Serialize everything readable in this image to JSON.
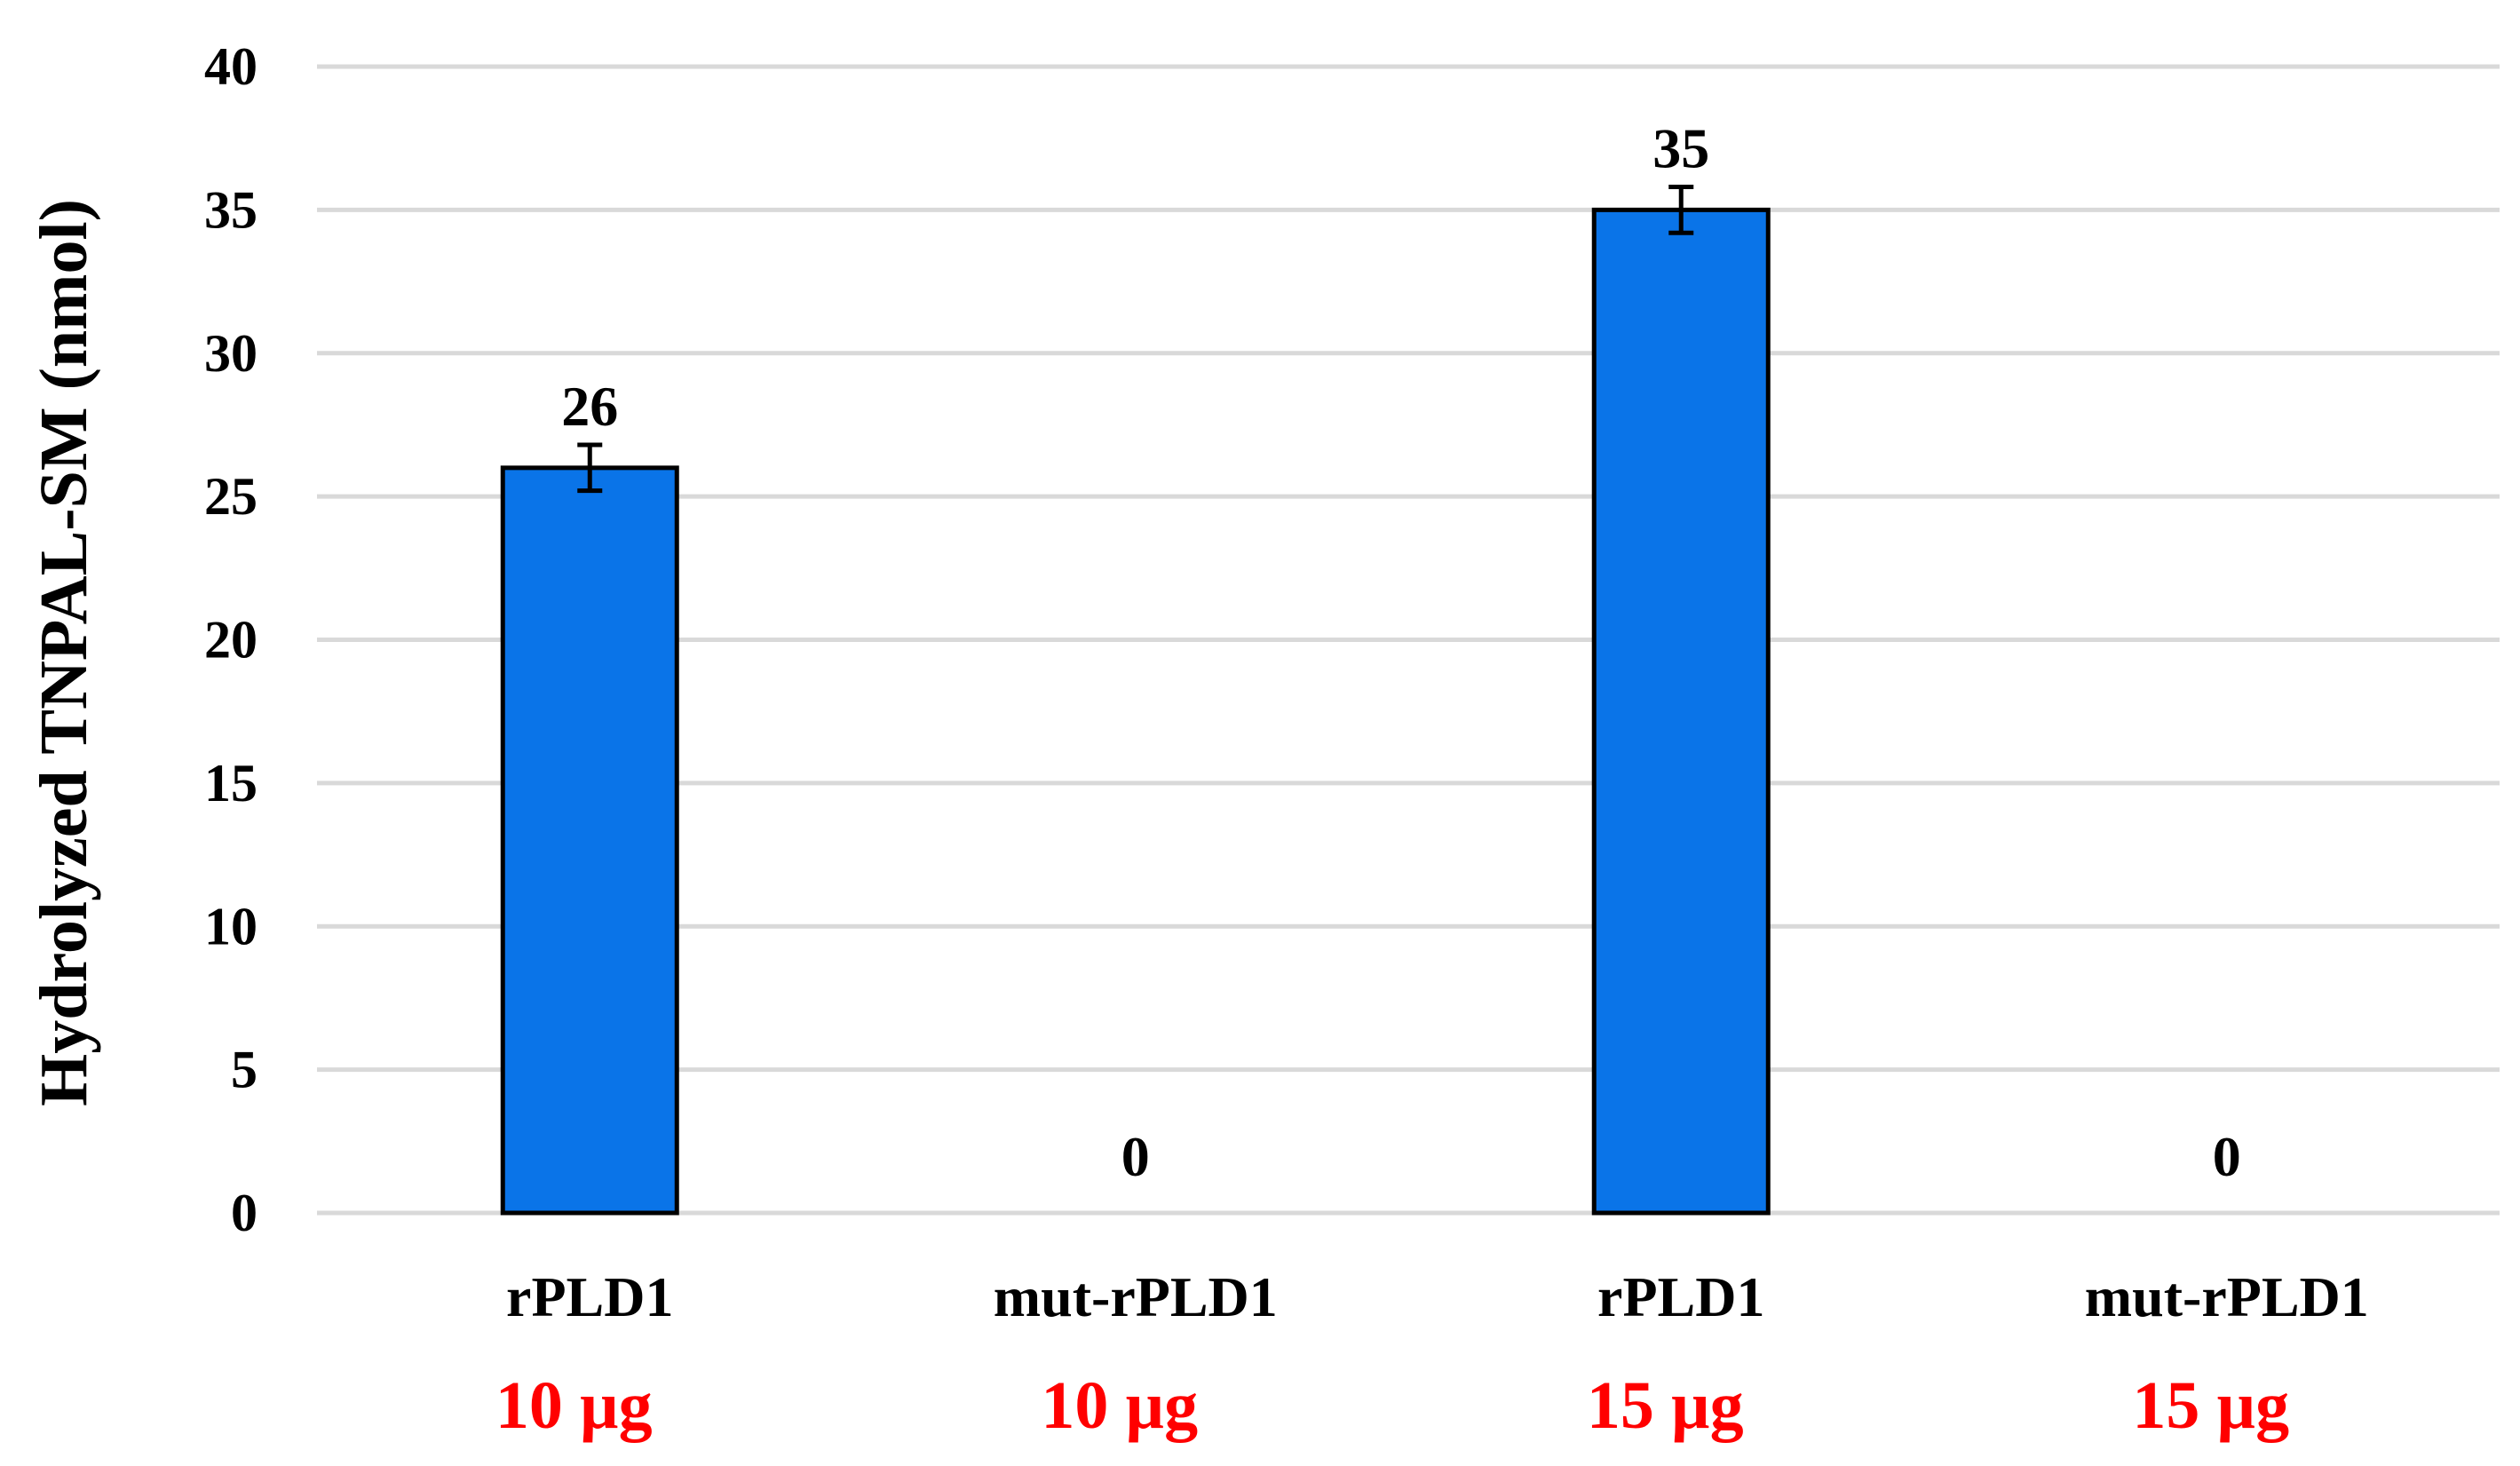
{
  "chart_data": {
    "type": "bar",
    "title": "",
    "xlabel": "",
    "ylabel": "Hydrolyzed TNPAL-SM (nmol)",
    "ylim": [
      0,
      40
    ],
    "yticks": [
      0,
      5,
      10,
      15,
      20,
      25,
      30,
      35,
      40
    ],
    "grid": true,
    "categories": [
      {
        "name": "rPLD1",
        "dose": "10 µg"
      },
      {
        "name": "mut-rPLD1",
        "dose": "10 µg"
      },
      {
        "name": "rPLD1",
        "dose": "15 µg"
      },
      {
        "name": "mut-rPLD1",
        "dose": "15 µg"
      }
    ],
    "values": [
      26,
      0,
      35,
      0
    ],
    "data_labels": [
      "26",
      "0",
      "35",
      "0"
    ],
    "error": [
      0.8,
      0,
      0.8,
      0
    ],
    "colors": {
      "bar": "#0a74e8",
      "bar_edge": "#000000",
      "grid": "#d9d9d9",
      "dose_text": "#ff0000"
    }
  }
}
